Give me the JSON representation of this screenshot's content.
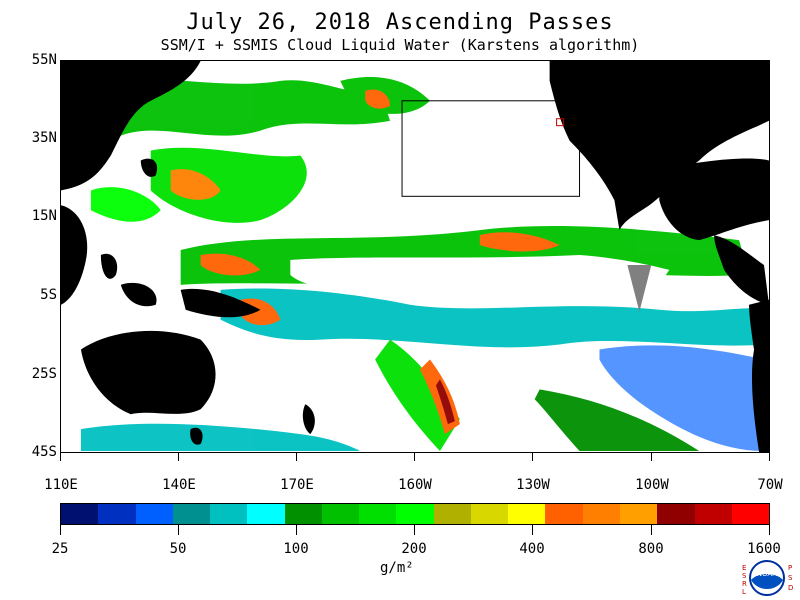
{
  "title": "July 26, 2018  Ascending Passes",
  "subtitle": "SSM/I + SSMIS Cloud Liquid Water (Karstens algorithm)",
  "lat_labels": [
    "55N",
    "35N",
    "15N",
    "5S",
    "25S",
    "45S"
  ],
  "lon_labels": [
    "110E",
    "140E",
    "170E",
    "160W",
    "130W",
    "100W",
    "70W"
  ],
  "colorbar": {
    "colors": [
      "#001070",
      "#0030c0",
      "#0060ff",
      "#009090",
      "#00c0c0",
      "#00ffff",
      "#009000",
      "#00c000",
      "#00e000",
      "#00ff00",
      "#b0b000",
      "#d8d800",
      "#ffff00",
      "#ff6000",
      "#ff8000",
      "#ffa000",
      "#900000",
      "#c00000",
      "#ff0000"
    ],
    "tick_labels": [
      "25",
      "50",
      "100",
      "200",
      "400",
      "800",
      "1600"
    ],
    "unit": "g/m²"
  },
  "logo": {
    "left_letters": "E S R L",
    "right_letters": "P S D",
    "center": "NOAA"
  },
  "land_color": "#000000",
  "nodata_color": "#ffffff"
}
